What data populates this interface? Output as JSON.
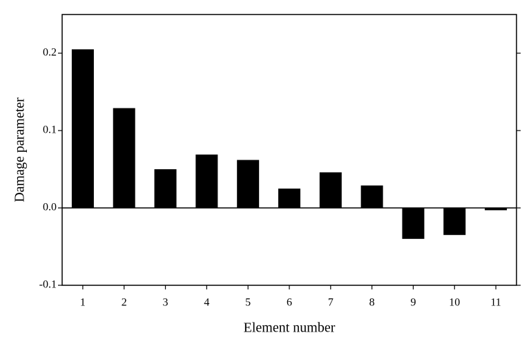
{
  "chart_data": {
    "type": "bar",
    "x_label": "Element number",
    "y_label": "Damage parameter",
    "categories": [
      "1",
      "2",
      "3",
      "4",
      "5",
      "6",
      "7",
      "8",
      "9",
      "10",
      "11"
    ],
    "values": [
      0.205,
      0.129,
      0.05,
      0.069,
      0.062,
      0.025,
      0.046,
      0.029,
      -0.04,
      -0.035,
      -0.003
    ],
    "color": "#000000",
    "ylim": [
      -0.1,
      0.25
    ],
    "yticks": [
      -0.1,
      {
        "value": 0,
        "label": "0.0"
      },
      0.1,
      0.2
    ],
    "zero_line": true
  }
}
